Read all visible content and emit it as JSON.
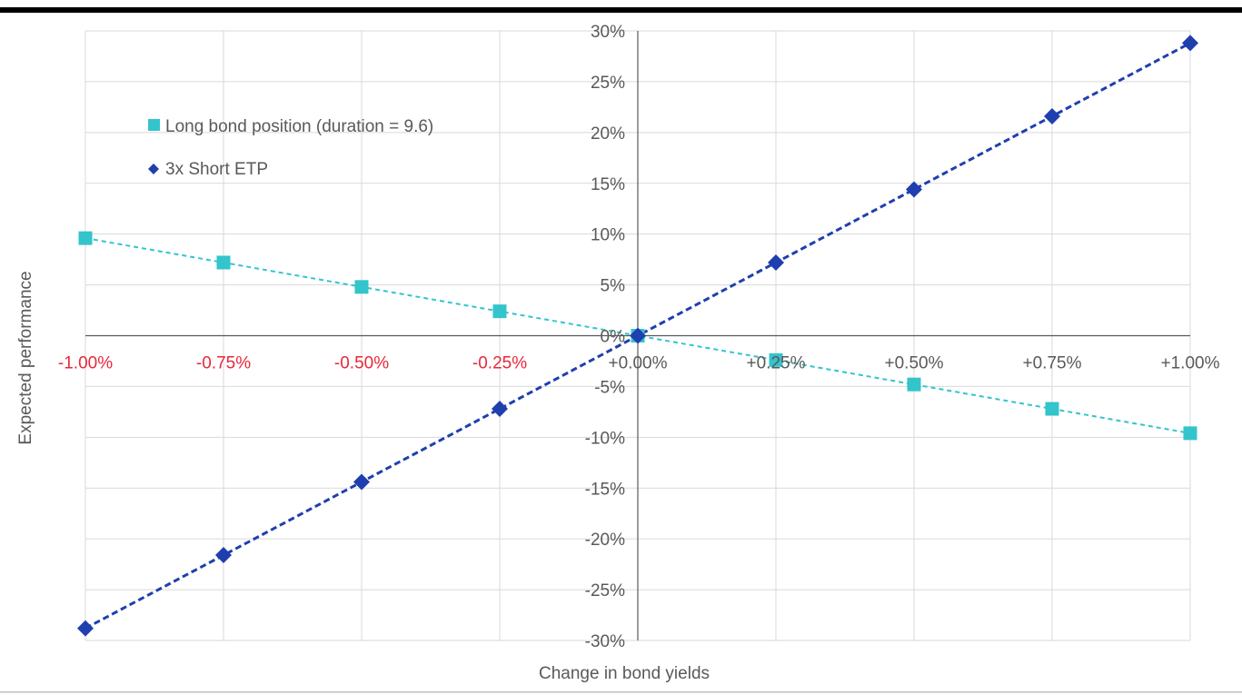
{
  "chart_data": {
    "type": "scatter",
    "title": "",
    "xlabel": "Change in bond yields",
    "ylabel": "Expected performance",
    "xlim": [
      -1.0,
      1.0
    ],
    "ylim": [
      -30,
      30
    ],
    "x_ticks": [
      -1.0,
      -0.75,
      -0.5,
      -0.25,
      0.0,
      0.25,
      0.5,
      0.75,
      1.0
    ],
    "x_tick_labels": [
      "-1.00%",
      "-0.75%",
      "-0.50%",
      "-0.25%",
      "+0.00%",
      "+0.25%",
      "+0.50%",
      "+0.75%",
      "+1.00%"
    ],
    "y_ticks": [
      30,
      25,
      20,
      15,
      10,
      5,
      0,
      -5,
      -10,
      -15,
      -20,
      -25,
      -30
    ],
    "y_tick_labels": [
      "30%",
      "25%",
      "20%",
      "15%",
      "10%",
      "5%",
      "0%",
      "-5%",
      "-10%",
      "-15%",
      "-20%",
      "-25%",
      "-30%"
    ],
    "grid": true,
    "legend_position": "top-left",
    "series": [
      {
        "name": "Long bond position (duration = 9.6)",
        "marker": "square",
        "color": "#33C4CC",
        "line_style": "dashed",
        "x": [
          -1.0,
          -0.75,
          -0.5,
          -0.25,
          0.0,
          0.25,
          0.5,
          0.75,
          1.0
        ],
        "y": [
          9.6,
          7.2,
          4.8,
          2.4,
          0.0,
          -2.4,
          -4.8,
          -7.2,
          -9.6
        ]
      },
      {
        "name": "3x Short ETP",
        "marker": "diamond",
        "color": "#1F3FAF",
        "line_style": "dashed",
        "x": [
          -1.0,
          -0.75,
          -0.5,
          -0.25,
          0.0,
          0.25,
          0.5,
          0.75,
          1.0
        ],
        "y": [
          -28.8,
          -21.6,
          -14.4,
          -7.2,
          0.0,
          7.2,
          14.4,
          21.6,
          28.8
        ]
      }
    ],
    "colors": {
      "negative_tick": "#E8283A",
      "positive_tick": "#595959",
      "grid": "#D9D9D9",
      "axis": "#595959",
      "rule": "#000000"
    }
  }
}
